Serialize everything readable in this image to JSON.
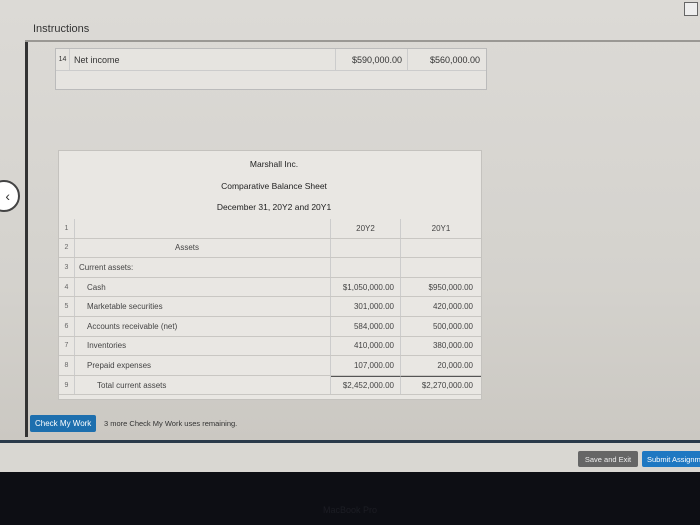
{
  "header": {
    "title": "Instructions"
  },
  "net_income": {
    "row_num": "14",
    "label": "Net income",
    "y2": "$590,000.00",
    "y1": "$560,000.00"
  },
  "statement": {
    "company": "Marshall Inc.",
    "title": "Comparative Balance Sheet",
    "date": "December 31, 20Y2 and 20Y1"
  },
  "table": {
    "rows": [
      {
        "n": "1",
        "label": "",
        "y2": "20Y2",
        "y1": "20Y1"
      },
      {
        "n": "2",
        "label": "Assets",
        "y2": "",
        "y1": ""
      },
      {
        "n": "3",
        "label": "Current assets:",
        "y2": "",
        "y1": ""
      },
      {
        "n": "4",
        "label": "Cash",
        "y2": "$1,050,000.00",
        "y1": "$950,000.00"
      },
      {
        "n": "5",
        "label": "Marketable securities",
        "y2": "301,000.00",
        "y1": "420,000.00"
      },
      {
        "n": "6",
        "label": "Accounts receivable (net)",
        "y2": "584,000.00",
        "y1": "500,000.00"
      },
      {
        "n": "7",
        "label": "Inventories",
        "y2": "410,000.00",
        "y1": "380,000.00"
      },
      {
        "n": "8",
        "label": "Prepaid expenses",
        "y2": "107,000.00",
        "y1": "20,000.00"
      },
      {
        "n": "9",
        "label": "Total current assets",
        "y2": "$2,452,000.00",
        "y1": "$2,270,000.00"
      }
    ]
  },
  "footer": {
    "check_label": "Check My Work",
    "remaining": "3 more Check My Work uses remaining.",
    "save_label": "Save and Exit",
    "submit_label": "Submit Assignment"
  },
  "device": {
    "brand": "MacBook Pro"
  },
  "colors": {
    "primary": "#1d6fae",
    "save": "#666666"
  }
}
